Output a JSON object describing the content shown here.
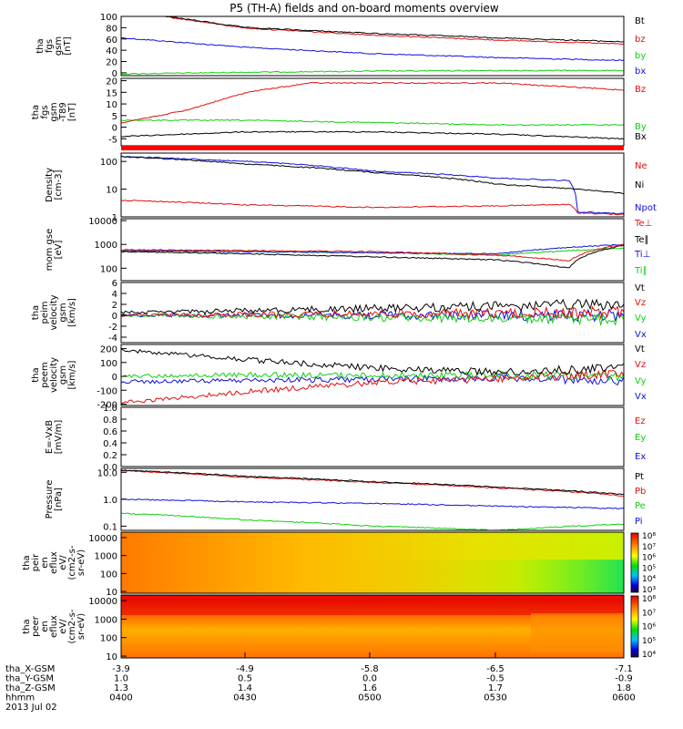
{
  "title": "P5 (TH-A) fields and on-board moments overview",
  "colors": {
    "black": "#000000",
    "red": "#e01010",
    "green": "#10d010",
    "blue": "#1010e0",
    "orange": "#e8a000"
  },
  "chart_data": [
    {
      "type": "line",
      "ylabel": "tha fgs gsm [nT]",
      "ylim": [
        -5,
        100
      ],
      "yscale": "linear",
      "ticks": [
        "100",
        "80",
        "60",
        "40",
        "20",
        "0"
      ],
      "tick_values": [
        100,
        80,
        60,
        40,
        20,
        0
      ],
      "legend": [
        "Bt",
        "bz",
        "by",
        "bx"
      ],
      "series": [
        {
          "name": "Bt",
          "color": "black",
          "x": [
            "0400",
            "0411",
            "0430",
            "0500",
            "0530",
            "0600"
          ],
          "values": [
            135,
            100,
            80,
            70,
            62,
            55
          ]
        },
        {
          "name": "bz",
          "color": "red",
          "x": [
            "0400",
            "0411",
            "0430",
            "0500",
            "0530",
            "0600"
          ],
          "values": [
            130,
            99,
            79,
            67,
            58,
            51
          ]
        },
        {
          "name": "by",
          "color": "green",
          "x": [
            "0400",
            "0430",
            "0500",
            "0530",
            "0600"
          ],
          "values": [
            -2,
            1,
            3,
            4,
            4
          ]
        },
        {
          "name": "bx",
          "color": "blue",
          "x": [
            "0400",
            "0430",
            "0500",
            "0530",
            "0600"
          ],
          "values": [
            62,
            45,
            34,
            27,
            22
          ]
        }
      ]
    },
    {
      "type": "line",
      "ylabel": "tha fgs gsm -T89 [nT]",
      "ylim": [
        -8,
        21
      ],
      "yscale": "linear",
      "ticks": [
        "20",
        "15",
        "10",
        "5",
        "0",
        "-5"
      ],
      "tick_values": [
        20,
        15,
        10,
        5,
        0,
        -5
      ],
      "legend": [
        "Bz",
        "By",
        "Bx"
      ],
      "series": [
        {
          "name": "Bz",
          "color": "red",
          "x": [
            "0400",
            "0415",
            "0430",
            "0445",
            "0500",
            "0530",
            "0600"
          ],
          "values": [
            2,
            7,
            15,
            19,
            19,
            19,
            16
          ]
        },
        {
          "name": "By",
          "color": "green",
          "x": [
            "0400",
            "0430",
            "0500",
            "0530",
            "0600"
          ],
          "values": [
            3,
            3,
            2,
            1,
            1
          ]
        },
        {
          "name": "Bx",
          "color": "black",
          "x": [
            "0400",
            "0430",
            "0500",
            "0530",
            "0600"
          ],
          "values": [
            -4,
            -2,
            -2,
            -3,
            -5
          ]
        }
      ]
    },
    {
      "type": "line",
      "ylabel": "Density [cm-3]",
      "ylim": [
        1,
        200
      ],
      "yscale": "log",
      "ticks": [
        "100",
        "10",
        "1"
      ],
      "tick_values": [
        100,
        10,
        1
      ],
      "legend": [
        "Ne",
        "Ni",
        "Npot"
      ],
      "series": [
        {
          "name": "Ni",
          "color": "black",
          "x": [
            "0400",
            "0430",
            "0500",
            "0530",
            "0600"
          ],
          "values": [
            150,
            80,
            40,
            15,
            7
          ]
        },
        {
          "name": "Npot",
          "color": "blue",
          "x": [
            "0400",
            "0430",
            "0500",
            "0530",
            "0547",
            "0549",
            "0600"
          ],
          "values": [
            150,
            100,
            45,
            25,
            20,
            1.5,
            1.3
          ]
        },
        {
          "name": "Ne",
          "color": "red",
          "x": [
            "0400",
            "0430",
            "0500",
            "0530",
            "0547",
            "0549",
            "0600"
          ],
          "values": [
            4,
            2.7,
            2.2,
            2.5,
            2.8,
            1.4,
            1.2
          ]
        }
      ]
    },
    {
      "type": "line",
      "ylabel": "mom gse [eV]",
      "ylim": [
        30,
        12000
      ],
      "yscale": "log",
      "ticks": [
        "10000",
        "1000",
        "100"
      ],
      "tick_values": [
        10000,
        1000,
        100
      ],
      "legend": [
        "Te⊥",
        "Te∥",
        "Ti⊥",
        "Ti∥"
      ],
      "series": [
        {
          "name": "Te⊥",
          "color": "red",
          "x": [
            "0400",
            "0430",
            "0500",
            "0530",
            "0547",
            "0600"
          ],
          "values": [
            600,
            550,
            500,
            350,
            200,
            1000
          ]
        },
        {
          "name": "Te∥",
          "color": "black",
          "x": [
            "0400",
            "0430",
            "0500",
            "0530",
            "0547",
            "0600"
          ],
          "values": [
            500,
            400,
            300,
            220,
            100,
            900
          ]
        },
        {
          "name": "Ti⊥",
          "color": "blue",
          "x": [
            "0400",
            "0430",
            "0500",
            "0530",
            "0600"
          ],
          "values": [
            550,
            500,
            450,
            400,
            1000
          ]
        },
        {
          "name": "Ti∥",
          "color": "green",
          "x": [
            "0400",
            "0430",
            "0500",
            "0530",
            "0600"
          ],
          "values": [
            550,
            500,
            450,
            350,
            700
          ]
        }
      ]
    },
    {
      "type": "line",
      "ylabel": "tha peim velocity gsm [km/s]",
      "ylim": [
        -5,
        6
      ],
      "yscale": "linear",
      "ticks": [
        "6",
        "4",
        "2",
        "0",
        "-2",
        "-4"
      ],
      "tick_values": [
        6,
        4,
        2,
        0,
        -2,
        -4
      ],
      "legend": [
        "Vt",
        "Vz",
        "Vy",
        "Vx"
      ],
      "series": [
        {
          "name": "Vt",
          "color": "black",
          "x": [
            "0400",
            "0600"
          ],
          "values": [
            0.5,
            2
          ]
        },
        {
          "name": "Vz",
          "color": "red",
          "x": [
            "0400",
            "0600"
          ],
          "values": [
            0,
            0.5
          ]
        },
        {
          "name": "Vy",
          "color": "green",
          "x": [
            "0400",
            "0600"
          ],
          "values": [
            0,
            -0.8
          ]
        },
        {
          "name": "Vx",
          "color": "blue",
          "x": [
            "0400",
            "0600"
          ],
          "values": [
            0,
            0
          ]
        }
      ]
    },
    {
      "type": "line",
      "ylabel": "tha peem velocity gsm [km/s]",
      "ylim": [
        -210,
        230
      ],
      "yscale": "linear",
      "ticks": [
        "200",
        "100",
        "0",
        "-100",
        "-200"
      ],
      "tick_values": [
        200,
        100,
        0,
        -100,
        -200
      ],
      "legend": [
        "Vt",
        "Vz",
        "Vy",
        "Vx"
      ],
      "series": [
        {
          "name": "Vt",
          "color": "black",
          "x": [
            "0400",
            "0430",
            "0500",
            "0530",
            "0600"
          ],
          "values": [
            190,
            120,
            60,
            30,
            60
          ]
        },
        {
          "name": "Vz",
          "color": "red",
          "x": [
            "0400",
            "0430",
            "0500",
            "0530",
            "0600"
          ],
          "values": [
            -190,
            -110,
            -45,
            -15,
            20
          ]
        },
        {
          "name": "Vy",
          "color": "green",
          "x": [
            "0400",
            "0430",
            "0500",
            "0530",
            "0600"
          ],
          "values": [
            0,
            10,
            5,
            10,
            0
          ]
        },
        {
          "name": "Vx",
          "color": "blue",
          "x": [
            "0400",
            "0430",
            "0500",
            "0530",
            "0600"
          ],
          "values": [
            -40,
            -30,
            -20,
            -10,
            -30
          ]
        }
      ]
    },
    {
      "type": "line",
      "ylabel": "E=-VxB [mV/m]",
      "ylim": [
        0,
        1
      ],
      "yscale": "linear",
      "ticks": [
        "1.0",
        "0.8",
        "0.6",
        "0.4",
        "0.2",
        "0.0"
      ],
      "tick_values": [
        1,
        0.8,
        0.6,
        0.4,
        0.2,
        0
      ],
      "legend": [
        "Ez",
        "Ey",
        "Ex"
      ],
      "series": []
    },
    {
      "type": "line",
      "ylabel": "Pressure [nPa]",
      "ylim": [
        0.07,
        14
      ],
      "yscale": "log",
      "ticks": [
        "10.0",
        "1.0",
        "0.1"
      ],
      "tick_values": [
        10,
        1,
        0.1
      ],
      "legend": [
        "Pt",
        "Pb",
        "Pe",
        "Pi"
      ],
      "series": [
        {
          "name": "Pt",
          "color": "black",
          "x": [
            "0400",
            "0430",
            "0500",
            "0530",
            "0600"
          ],
          "values": [
            12,
            7,
            4.5,
            2.8,
            1.5
          ]
        },
        {
          "name": "Pb",
          "color": "red",
          "x": [
            "0400",
            "0430",
            "0500",
            "0530",
            "0600"
          ],
          "values": [
            11.5,
            6.5,
            4.2,
            2.6,
            1.35
          ]
        },
        {
          "name": "Pe",
          "color": "green",
          "x": [
            "0400",
            "0430",
            "0500",
            "0530",
            "0600"
          ],
          "values": [
            0.3,
            0.17,
            0.1,
            0.07,
            0.12
          ]
        },
        {
          "name": "Pi",
          "color": "blue",
          "x": [
            "0400",
            "0430",
            "0500",
            "0530",
            "0600"
          ],
          "values": [
            1.0,
            0.8,
            0.7,
            0.55,
            0.45
          ]
        }
      ]
    },
    {
      "type": "heatmap",
      "ylabel": "tha peir en eflux eV/(cm2-s-sr-eV)",
      "ylim": [
        8,
        20000
      ],
      "yscale": "log",
      "ticks": [
        "10000",
        "1000",
        "100",
        "10"
      ],
      "tick_values": [
        10000,
        1000,
        100,
        10
      ],
      "colorbar": [
        "10⁸",
        "10⁷",
        "10⁶",
        "10⁵",
        "10⁴",
        "10³"
      ]
    },
    {
      "type": "heatmap",
      "ylabel": "tha peer en eflux eV/(cm2-s-sr-eV)",
      "ylim": [
        8,
        20000
      ],
      "yscale": "log",
      "ticks": [
        "10000",
        "1000",
        "100",
        "10"
      ],
      "tick_values": [
        10000,
        1000,
        100,
        10
      ],
      "colorbar": [
        "10⁸",
        "10⁷",
        "10⁶",
        "10⁵",
        "10⁴"
      ]
    }
  ],
  "xaxis": {
    "rows": [
      {
        "label": "tha_X-GSM",
        "values": [
          "-3.9",
          "-4.9",
          "-5.8",
          "-6.5",
          "-7.1"
        ]
      },
      {
        "label": "tha_Y-GSM",
        "values": [
          "1.0",
          "0.5",
          "0.0",
          "-0.5",
          "-0.9"
        ]
      },
      {
        "label": "tha_Z-GSM",
        "values": [
          "1.3",
          "1.4",
          "1.6",
          "1.7",
          "1.8"
        ]
      },
      {
        "label": "hhmm",
        "values": [
          "0400",
          "0430",
          "0500",
          "0530",
          "0600"
        ]
      }
    ],
    "date": "2013 Jul 02"
  }
}
